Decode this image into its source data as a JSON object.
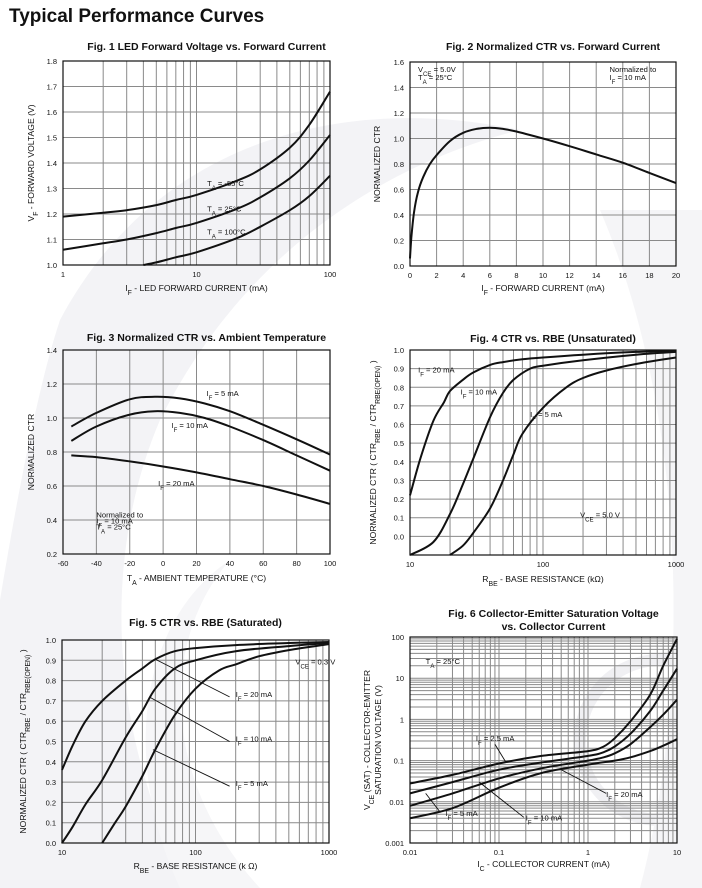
{
  "page": {
    "title": "Typical Performance Curves"
  },
  "chart_data": [
    {
      "id": "fig1",
      "type": "line",
      "title": "Fig. 1  LED Forward Voltage vs. Forward Current",
      "xlabel": "I_F - LED FORWARD CURRENT (mA)",
      "ylabel": "V_F - FORWARD VOLTAGE (V)",
      "xscale": "log",
      "xlim": [
        1,
        100
      ],
      "ylim": [
        1.0,
        1.8
      ],
      "xticks": [
        1,
        10,
        100
      ],
      "xtick_labels": [
        "1",
        "10",
        "100"
      ],
      "yticks": [
        1.0,
        1.1,
        1.2,
        1.3,
        1.4,
        1.5,
        1.6,
        1.7,
        1.8
      ],
      "ytick_labels": [
        "1.0",
        "1.1",
        "1.2",
        "1.3",
        "1.4",
        "1.5",
        "1.6",
        "1.7",
        "1.8"
      ],
      "grid": true,
      "series": [
        {
          "name": "T_A = -55°C",
          "x": [
            1,
            2,
            3,
            5,
            7,
            10,
            20,
            30,
            50,
            70,
            100
          ],
          "y": [
            1.19,
            1.205,
            1.215,
            1.235,
            1.255,
            1.275,
            1.33,
            1.375,
            1.46,
            1.55,
            1.68
          ]
        },
        {
          "name": "T_A = 25°C",
          "x": [
            1,
            2,
            3,
            5,
            7,
            10,
            20,
            30,
            50,
            70,
            100
          ],
          "y": [
            1.06,
            1.085,
            1.1,
            1.125,
            1.145,
            1.165,
            1.22,
            1.265,
            1.34,
            1.41,
            1.51
          ]
        },
        {
          "name": "T_A = 100°C",
          "x": [
            4,
            5,
            7,
            10,
            20,
            30,
            50,
            70,
            100
          ],
          "y": [
            1.0,
            1.01,
            1.03,
            1.05,
            1.105,
            1.15,
            1.215,
            1.27,
            1.35
          ]
        }
      ],
      "annotations": [
        {
          "text": "T_A = -55°C",
          "x": 12,
          "y": 1.31
        },
        {
          "text": "T_A = 25°C",
          "x": 12,
          "y": 1.21
        },
        {
          "text": "T_A = 100°C",
          "x": 12,
          "y": 1.12
        }
      ]
    },
    {
      "id": "fig2",
      "type": "line",
      "title": "Fig. 2  Normalized CTR vs. Forward Current",
      "xlabel": "I_F - FORWARD CURRENT (mA)",
      "ylabel": "NORMALIZED CTR",
      "xscale": "linear",
      "xlim": [
        0,
        20
      ],
      "ylim": [
        0.0,
        1.6
      ],
      "xticks": [
        0,
        2,
        4,
        6,
        8,
        10,
        12,
        14,
        16,
        18,
        20
      ],
      "xtick_labels": [
        "0",
        "2",
        "4",
        "6",
        "8",
        "10",
        "12",
        "14",
        "16",
        "18",
        "20"
      ],
      "yticks": [
        0.0,
        0.2,
        0.4,
        0.6,
        0.8,
        1.0,
        1.2,
        1.4,
        1.6
      ],
      "ytick_labels": [
        "0.0",
        "0.2",
        "0.4",
        "0.6",
        "0.8",
        "1.0",
        "1.2",
        "1.4",
        "1.6"
      ],
      "grid": true,
      "series": [
        {
          "name": "Normalized CTR",
          "x": [
            0,
            0.1,
            0.3,
            0.6,
            1,
            1.5,
            2,
            3,
            4,
            5,
            6,
            7,
            8,
            10,
            12,
            14,
            16,
            18,
            20
          ],
          "y": [
            0.06,
            0.22,
            0.42,
            0.58,
            0.7,
            0.8,
            0.87,
            0.98,
            1.045,
            1.075,
            1.085,
            1.075,
            1.055,
            1.0,
            0.94,
            0.875,
            0.81,
            0.73,
            0.65
          ]
        }
      ],
      "annotations": [
        {
          "text": "V_CE = 5.0V",
          "x": 0.6,
          "y": 1.52
        },
        {
          "text": "T_A = 25°C",
          "x": 0.6,
          "y": 1.46
        },
        {
          "text": "Normalized to",
          "x": 15,
          "y": 1.52
        },
        {
          "text": "I_F = 10 mA",
          "x": 15,
          "y": 1.46
        }
      ]
    },
    {
      "id": "fig3",
      "type": "line",
      "title": "Fig. 3  Normalized CTR vs. Ambient Temperature",
      "xlabel": "T_A - AMBIENT TEMPERATURE (°C)",
      "ylabel": "NORMALIZED CTR",
      "xscale": "linear",
      "xlim": [
        -60,
        100
      ],
      "ylim": [
        0.2,
        1.4
      ],
      "xticks": [
        -60,
        -40,
        -20,
        0,
        20,
        40,
        60,
        80,
        100
      ],
      "xtick_labels": [
        "-60",
        "-40",
        "-20",
        "0",
        "20",
        "40",
        "60",
        "80",
        "100"
      ],
      "yticks": [
        0.2,
        0.4,
        0.6,
        0.8,
        1.0,
        1.2,
        1.4
      ],
      "ytick_labels": [
        "0.2",
        "0.4",
        "0.6",
        "0.8",
        "1.0",
        "1.2",
        "1.4"
      ],
      "grid": true,
      "series": [
        {
          "name": "I_F = 5 mA",
          "x": [
            -55,
            -40,
            -20,
            -5,
            10,
            25,
            40,
            60,
            80,
            100
          ],
          "y": [
            0.95,
            1.03,
            1.11,
            1.125,
            1.115,
            1.085,
            1.04,
            0.96,
            0.875,
            0.785
          ]
        },
        {
          "name": "I_F = 10 mA",
          "x": [
            -55,
            -40,
            -20,
            -5,
            10,
            25,
            40,
            60,
            80,
            100
          ],
          "y": [
            0.865,
            0.95,
            1.02,
            1.04,
            1.03,
            1.0,
            0.95,
            0.87,
            0.78,
            0.69
          ]
        },
        {
          "name": "I_F = 20 mA",
          "x": [
            -55,
            -40,
            -20,
            0,
            20,
            40,
            60,
            80,
            100
          ],
          "y": [
            0.78,
            0.77,
            0.745,
            0.715,
            0.68,
            0.64,
            0.6,
            0.55,
            0.495
          ]
        }
      ],
      "annotations": [
        {
          "text": "I_F = 5 mA",
          "x": 26,
          "y": 1.13
        },
        {
          "text": "I_F = 10 mA",
          "x": 5,
          "y": 0.94
        },
        {
          "text": "I_F = 20 mA",
          "x": -3,
          "y": 0.6
        },
        {
          "text": "Normalized to",
          "x": -40,
          "y": 0.415
        },
        {
          "text": "I_F = 10 mA",
          "x": -40,
          "y": 0.38
        },
        {
          "text": "T_A = 25°C",
          "x": -40,
          "y": 0.345
        }
      ]
    },
    {
      "id": "fig4",
      "type": "line",
      "title": "Fig. 4  CTR vs. RBE (Unsaturated)",
      "xlabel": "R_BE - BASE RESISTANCE (kΩ)",
      "ylabel": "NORMALIZED CTR ( CTR_RBE / CTR_RBE(OPEN) )",
      "xscale": "log",
      "xlim": [
        10,
        1000
      ],
      "ylim": [
        -0.1,
        1.0
      ],
      "xticks": [
        10,
        100,
        1000
      ],
      "xtick_labels": [
        "10",
        "100",
        "1000"
      ],
      "yticks": [
        0.0,
        0.1,
        0.2,
        0.3,
        0.4,
        0.5,
        0.6,
        0.7,
        0.8,
        0.9,
        1.0
      ],
      "ytick_labels": [
        "0.0",
        "0.1",
        "0.2",
        "0.3",
        "0.4",
        "0.5",
        "0.6",
        "0.7",
        "0.8",
        "0.9",
        "1.0"
      ],
      "grid": true,
      "series": [
        {
          "name": "I_F = 20 mA",
          "x": [
            10,
            12,
            15,
            18,
            20,
            25,
            30,
            40,
            50,
            70,
            100,
            200,
            500,
            1000
          ],
          "y": [
            0.22,
            0.42,
            0.62,
            0.72,
            0.78,
            0.84,
            0.88,
            0.92,
            0.935,
            0.95,
            0.96,
            0.975,
            0.99,
            0.995
          ]
        },
        {
          "name": "I_F = 10 mA",
          "x": [
            10,
            15,
            20,
            25,
            30,
            40,
            50,
            60,
            80,
            100,
            200,
            500,
            1000
          ],
          "y": [
            -0.1,
            -0.03,
            0.12,
            0.28,
            0.42,
            0.64,
            0.77,
            0.84,
            0.9,
            0.915,
            0.945,
            0.975,
            0.99
          ]
        },
        {
          "name": "I_F = 5 mA",
          "x": [
            20,
            25,
            30,
            40,
            50,
            60,
            70,
            100,
            150,
            200,
            300,
            500,
            1000
          ],
          "y": [
            -0.1,
            -0.05,
            0.02,
            0.15,
            0.3,
            0.44,
            0.55,
            0.69,
            0.8,
            0.85,
            0.89,
            0.925,
            0.96
          ]
        }
      ],
      "annotations": [
        {
          "text": "I_F = 20 mA",
          "x": 11.5,
          "y": 0.88
        },
        {
          "text": "I_F = 10 mA",
          "x": 24,
          "y": 0.76
        },
        {
          "text": "I_F = 5 mA",
          "x": 80,
          "y": 0.64
        },
        {
          "text": "V_CE = 5.0 V",
          "x": 190,
          "y": 0.1
        }
      ]
    },
    {
      "id": "fig5",
      "type": "line",
      "title": "Fig. 5  CTR vs. RBE (Saturated)",
      "xlabel": "R_BE - BASE RESISTANCE (k Ω)",
      "ylabel": "NORMALIZED CTR ( CTR_RBE / CTR_RBE(OPEN) )",
      "xscale": "log",
      "xlim": [
        10,
        1000
      ],
      "ylim": [
        0.0,
        1.0
      ],
      "xticks": [
        10,
        100,
        1000
      ],
      "xtick_labels": [
        "10",
        "100",
        "1000"
      ],
      "yticks": [
        0.0,
        0.1,
        0.2,
        0.3,
        0.4,
        0.5,
        0.6,
        0.7,
        0.8,
        0.9,
        1.0
      ],
      "ytick_labels": [
        "0.0",
        "0.1",
        "0.2",
        "0.3",
        "0.4",
        "0.5",
        "0.6",
        "0.7",
        "0.8",
        "0.9",
        "1.0"
      ],
      "grid": true,
      "series": [
        {
          "name": "I_F = 20 mA",
          "x": [
            10,
            12,
            15,
            20,
            30,
            40,
            50,
            70,
            100,
            200,
            500,
            1000
          ],
          "y": [
            0.36,
            0.48,
            0.6,
            0.7,
            0.8,
            0.86,
            0.905,
            0.945,
            0.96,
            0.975,
            0.985,
            0.99
          ]
        },
        {
          "name": "I_F = 10 mA",
          "x": [
            10,
            12,
            15,
            20,
            30,
            40,
            50,
            70,
            100,
            200,
            500,
            1000
          ],
          "y": [
            0.0,
            0.08,
            0.19,
            0.31,
            0.52,
            0.65,
            0.76,
            0.86,
            0.9,
            0.945,
            0.97,
            0.985
          ]
        },
        {
          "name": "I_F = 5 mA",
          "x": [
            20,
            25,
            30,
            40,
            50,
            70,
            100,
            150,
            200,
            300,
            500,
            1000
          ],
          "y": [
            0.0,
            0.1,
            0.18,
            0.33,
            0.46,
            0.63,
            0.76,
            0.85,
            0.88,
            0.92,
            0.95,
            0.98
          ]
        }
      ],
      "annotations": [
        {
          "text": "V_CE = 0.3 V",
          "x": 560,
          "y": 0.88
        },
        {
          "text": "I_F = 20 mA",
          "x": 200,
          "y": 0.72
        },
        {
          "text": "I_F = 10 mA",
          "x": 200,
          "y": 0.5
        },
        {
          "text": "I_F = 5 mA",
          "x": 200,
          "y": 0.28
        }
      ]
    },
    {
      "id": "fig6",
      "type": "line",
      "title": "Fig. 6  Collector-Emitter Saturation Voltage",
      "title2": "vs. Collector Current",
      "xlabel": "I_C - COLLECTOR CURRENT (mA)",
      "ylabel": "V_CE (SAT) - COLLECTOR-EMITTER",
      "ylabel2": "SATURATION VOLTAGE (V)",
      "xscale": "log",
      "yscale": "log",
      "xlim": [
        0.01,
        10
      ],
      "ylim": [
        0.001,
        100
      ],
      "xticks": [
        0.01,
        0.1,
        1,
        10
      ],
      "xtick_labels": [
        "0.01",
        "0.1",
        "1",
        "10"
      ],
      "yticks": [
        0.001,
        0.01,
        0.1,
        1,
        10,
        100
      ],
      "ytick_labels": [
        "0.001",
        "0.01",
        "0.1",
        "1",
        "10",
        "100"
      ],
      "grid": true,
      "series": [
        {
          "name": "I_F = 2.5 mA",
          "x": [
            0.01,
            0.03,
            0.1,
            0.3,
            1,
            1.5,
            2,
            3,
            5,
            7,
            10
          ],
          "y": [
            0.028,
            0.045,
            0.085,
            0.13,
            0.17,
            0.22,
            0.35,
            0.9,
            4,
            20,
            90
          ]
        },
        {
          "name": "I_F = 5 mA",
          "x": [
            0.01,
            0.03,
            0.1,
            0.3,
            1,
            1.5,
            2,
            3,
            5,
            7,
            10
          ],
          "y": [
            0.016,
            0.03,
            0.06,
            0.09,
            0.13,
            0.16,
            0.22,
            0.45,
            1.6,
            5,
            17
          ]
        },
        {
          "name": "I_F = 10 mA",
          "x": [
            0.01,
            0.03,
            0.1,
            0.3,
            1,
            1.5,
            2,
            3,
            5,
            7,
            10
          ],
          "y": [
            0.008,
            0.016,
            0.037,
            0.065,
            0.1,
            0.12,
            0.15,
            0.25,
            0.65,
            1.3,
            3
          ]
        },
        {
          "name": "I_F = 20 mA",
          "x": [
            0.01,
            0.03,
            0.1,
            0.3,
            1,
            2,
            3,
            5,
            7,
            10
          ],
          "y": [
            0.004,
            0.007,
            0.022,
            0.05,
            0.08,
            0.1,
            0.12,
            0.17,
            0.23,
            0.33
          ]
        }
      ],
      "annotations": [
        {
          "text": "T_A = 25°C",
          "x": 0.015,
          "y": 22
        },
        {
          "text": "I_F = 2.5 mA",
          "x": 0.055,
          "y": 0.3
        },
        {
          "text": "I_F = 5 mA",
          "x": 0.025,
          "y": 0.0045
        },
        {
          "text": "I_F = 10 mA",
          "x": 0.2,
          "y": 0.0035
        },
        {
          "text": "I_F = 20 mA",
          "x": 1.6,
          "y": 0.013
        }
      ]
    }
  ]
}
